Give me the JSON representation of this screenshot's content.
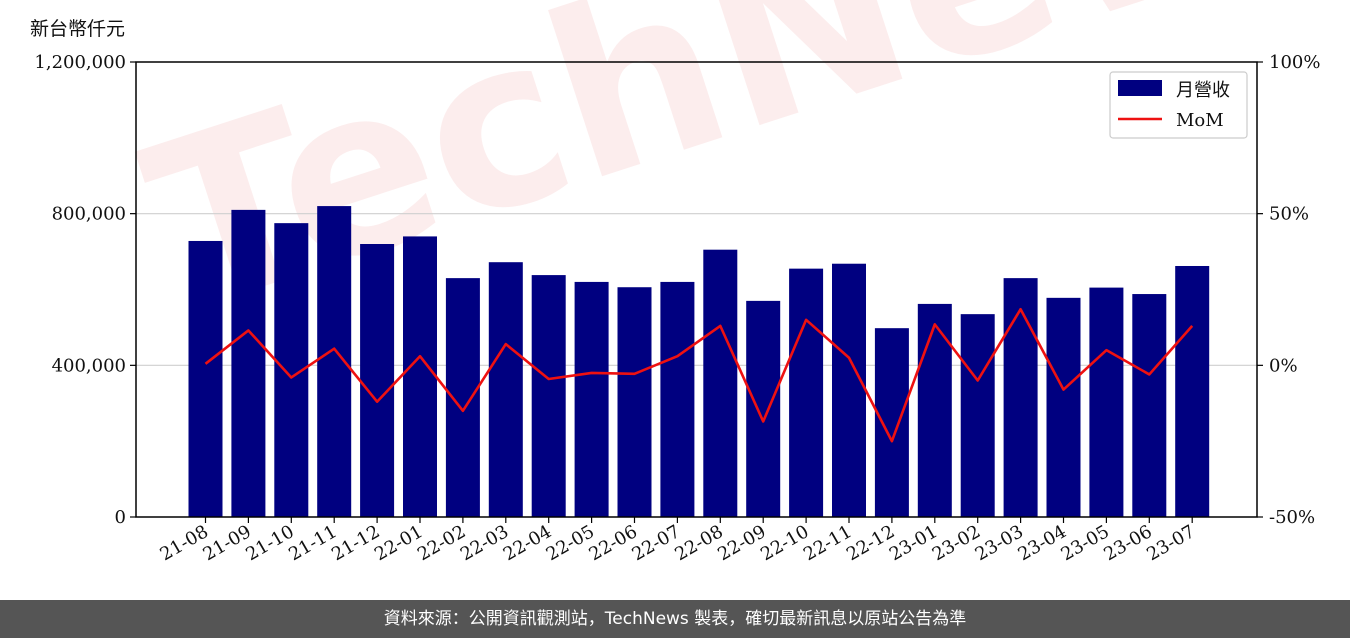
{
  "unit_label": "新台幣仟元",
  "footer_text": "資料來源：公開資訊觀測站，TechNews 製表，確切最新訊息以原站公告為準",
  "watermark_text": "TechNews",
  "chart_data": {
    "type": "bar",
    "categories": [
      "21-08",
      "21-09",
      "21-10",
      "21-11",
      "21-12",
      "22-01",
      "22-02",
      "22-03",
      "22-04",
      "22-05",
      "22-06",
      "22-07",
      "22-08",
      "22-09",
      "22-10",
      "22-11",
      "22-12",
      "23-01",
      "23-02",
      "23-03",
      "23-04",
      "23-05",
      "23-06",
      "23-07"
    ],
    "series": [
      {
        "name": "月營收",
        "type": "bar",
        "axis": "left",
        "color": "#000080",
        "values": [
          728000,
          810000,
          775000,
          820000,
          720000,
          740000,
          630000,
          672000,
          638000,
          620000,
          606000,
          620000,
          705000,
          570000,
          655000,
          668000,
          498000,
          562000,
          535000,
          630000,
          578000,
          605000,
          588000,
          662000
        ]
      },
      {
        "name": "MoM",
        "type": "line",
        "axis": "right",
        "color": "#ee1111",
        "values": [
          0.5,
          11.5,
          -4,
          5.5,
          -12,
          3,
          -15,
          7,
          -4.5,
          -2.5,
          -2.8,
          3,
          13,
          -18.5,
          15,
          2.5,
          -25,
          13.5,
          -5,
          18.5,
          -8,
          5,
          -3,
          13
        ]
      }
    ],
    "y_left": {
      "ylim": [
        0,
        1200000
      ],
      "ticks": [
        "0",
        "400,000",
        "800,000",
        "1,200,000"
      ],
      "tick_values": [
        0,
        400000,
        800000,
        1200000
      ]
    },
    "y_right": {
      "ylim": [
        -50,
        100
      ],
      "ticks": [
        "-50%",
        "0%",
        "50%",
        "100%"
      ],
      "tick_values": [
        -50,
        0,
        50,
        100
      ]
    },
    "grid": "horizontal",
    "legend_position": "top-right"
  }
}
